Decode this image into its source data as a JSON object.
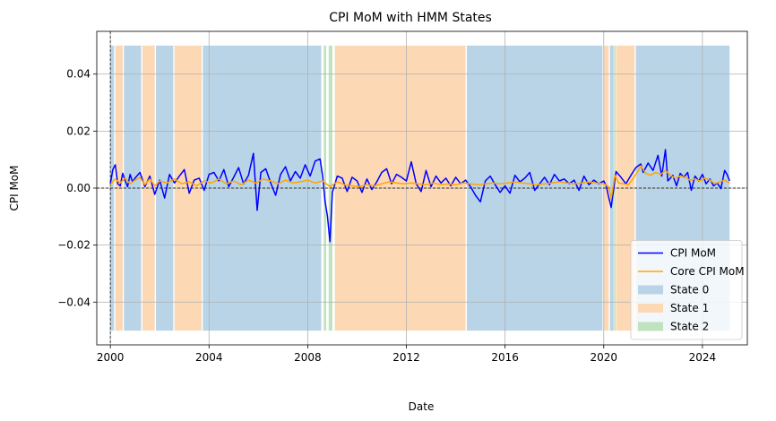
{
  "chart_data": {
    "type": "line",
    "title": "CPI MoM with HMM States",
    "xlabel": "Date",
    "ylabel": "CPI MoM",
    "xlim": [
      1999.45,
      2025.82
    ],
    "ylim": [
      -0.055,
      0.055
    ],
    "x_ticks": [
      2000,
      2004,
      2008,
      2012,
      2016,
      2020,
      2024
    ],
    "y_ticks": [
      -0.04,
      -0.02,
      0.0,
      0.02,
      0.04
    ],
    "y_tick_labels": [
      "−0.04",
      "−0.02",
      "0.00",
      "0.02",
      "0.04"
    ],
    "grid": true,
    "legend_position": "lower-right",
    "reference_lines": {
      "horizontal_y": 0,
      "vertical_x": 2000.0
    },
    "state_band_range": [
      -0.05,
      0.05
    ],
    "state_colors": [
      "#b9d4e7",
      "#fdd8b5",
      "#bfe3bf"
    ],
    "series": [
      {
        "name": "CPI MoM",
        "color": "#0000ff",
        "points": [
          [
            2000.0,
            0.0015
          ],
          [
            2000.1,
            0.0065
          ],
          [
            2000.2,
            0.0082
          ],
          [
            2000.3,
            0.0015
          ],
          [
            2000.4,
            0.0008
          ],
          [
            2000.5,
            0.0052
          ],
          [
            2000.6,
            0.0025
          ],
          [
            2000.7,
            0.0005
          ],
          [
            2000.8,
            0.0048
          ],
          [
            2000.9,
            0.0022
          ],
          [
            2001.0,
            0.0035
          ],
          [
            2001.2,
            0.0055
          ],
          [
            2001.4,
            0.0005
          ],
          [
            2001.6,
            0.0042
          ],
          [
            2001.8,
            -0.0022
          ],
          [
            2002.0,
            0.0028
          ],
          [
            2002.2,
            -0.0035
          ],
          [
            2002.4,
            0.0048
          ],
          [
            2002.6,
            0.0018
          ],
          [
            2002.8,
            0.0042
          ],
          [
            2003.0,
            0.0065
          ],
          [
            2003.2,
            -0.0018
          ],
          [
            2003.4,
            0.0028
          ],
          [
            2003.6,
            0.0035
          ],
          [
            2003.8,
            -0.0008
          ],
          [
            2004.0,
            0.0048
          ],
          [
            2004.2,
            0.0055
          ],
          [
            2004.4,
            0.0025
          ],
          [
            2004.6,
            0.0065
          ],
          [
            2004.8,
            0.0005
          ],
          [
            2005.0,
            0.0038
          ],
          [
            2005.2,
            0.0072
          ],
          [
            2005.4,
            0.0015
          ],
          [
            2005.6,
            0.0045
          ],
          [
            2005.8,
            0.0122
          ],
          [
            2005.95,
            -0.0078
          ],
          [
            2006.1,
            0.0055
          ],
          [
            2006.3,
            0.0068
          ],
          [
            2006.5,
            0.0018
          ],
          [
            2006.7,
            -0.0025
          ],
          [
            2006.9,
            0.0048
          ],
          [
            2007.1,
            0.0075
          ],
          [
            2007.3,
            0.0025
          ],
          [
            2007.5,
            0.0058
          ],
          [
            2007.7,
            0.0035
          ],
          [
            2007.9,
            0.0082
          ],
          [
            2008.1,
            0.0042
          ],
          [
            2008.3,
            0.0095
          ],
          [
            2008.5,
            0.0102
          ],
          [
            2008.6,
            0.0045
          ],
          [
            2008.7,
            -0.0045
          ],
          [
            2008.8,
            -0.0098
          ],
          [
            2008.9,
            -0.0188
          ],
          [
            2009.0,
            -0.0015
          ],
          [
            2009.2,
            0.0042
          ],
          [
            2009.4,
            0.0035
          ],
          [
            2009.6,
            -0.0012
          ],
          [
            2009.8,
            0.0038
          ],
          [
            2010.0,
            0.0025
          ],
          [
            2010.2,
            -0.0015
          ],
          [
            2010.4,
            0.0032
          ],
          [
            2010.6,
            -0.0005
          ],
          [
            2010.8,
            0.0022
          ],
          [
            2011.0,
            0.0055
          ],
          [
            2011.2,
            0.0068
          ],
          [
            2011.4,
            0.0015
          ],
          [
            2011.6,
            0.0048
          ],
          [
            2011.8,
            0.0038
          ],
          [
            2012.0,
            0.0025
          ],
          [
            2012.2,
            0.0092
          ],
          [
            2012.4,
            0.0015
          ],
          [
            2012.6,
            -0.0012
          ],
          [
            2012.8,
            0.0062
          ],
          [
            2013.0,
            0.0005
          ],
          [
            2013.2,
            0.0042
          ],
          [
            2013.4,
            0.0018
          ],
          [
            2013.6,
            0.0035
          ],
          [
            2013.8,
            0.0008
          ],
          [
            2014.0,
            0.0038
          ],
          [
            2014.2,
            0.0015
          ],
          [
            2014.4,
            0.0028
          ],
          [
            2014.6,
            0.0005
          ],
          [
            2014.8,
            -0.0025
          ],
          [
            2015.0,
            -0.0048
          ],
          [
            2015.2,
            0.0025
          ],
          [
            2015.4,
            0.0042
          ],
          [
            2015.6,
            0.0012
          ],
          [
            2015.8,
            -0.0015
          ],
          [
            2016.0,
            0.0008
          ],
          [
            2016.2,
            -0.0018
          ],
          [
            2016.4,
            0.0045
          ],
          [
            2016.6,
            0.0022
          ],
          [
            2016.8,
            0.0035
          ],
          [
            2017.0,
            0.0055
          ],
          [
            2017.2,
            -0.0008
          ],
          [
            2017.4,
            0.0015
          ],
          [
            2017.6,
            0.0038
          ],
          [
            2017.8,
            0.0012
          ],
          [
            2018.0,
            0.0048
          ],
          [
            2018.2,
            0.0025
          ],
          [
            2018.4,
            0.0032
          ],
          [
            2018.6,
            0.0015
          ],
          [
            2018.8,
            0.0028
          ],
          [
            2019.0,
            -0.0008
          ],
          [
            2019.2,
            0.0042
          ],
          [
            2019.4,
            0.0012
          ],
          [
            2019.6,
            0.0028
          ],
          [
            2019.8,
            0.0015
          ],
          [
            2020.0,
            0.0025
          ],
          [
            2020.1,
            0.0008
          ],
          [
            2020.2,
            -0.0032
          ],
          [
            2020.3,
            -0.0068
          ],
          [
            2020.4,
            -0.0005
          ],
          [
            2020.5,
            0.0058
          ],
          [
            2020.7,
            0.0038
          ],
          [
            2020.9,
            0.0015
          ],
          [
            2021.1,
            0.0045
          ],
          [
            2021.3,
            0.0072
          ],
          [
            2021.5,
            0.0085
          ],
          [
            2021.6,
            0.0055
          ],
          [
            2021.8,
            0.0088
          ],
          [
            2022.0,
            0.0062
          ],
          [
            2022.2,
            0.0115
          ],
          [
            2022.35,
            0.0042
          ],
          [
            2022.5,
            0.0135
          ],
          [
            2022.6,
            0.0025
          ],
          [
            2022.8,
            0.0045
          ],
          [
            2022.95,
            0.0008
          ],
          [
            2023.1,
            0.0052
          ],
          [
            2023.25,
            0.0038
          ],
          [
            2023.4,
            0.0055
          ],
          [
            2023.55,
            -0.0008
          ],
          [
            2023.7,
            0.0042
          ],
          [
            2023.85,
            0.0025
          ],
          [
            2024.0,
            0.0048
          ],
          [
            2024.15,
            0.0015
          ],
          [
            2024.3,
            0.0032
          ],
          [
            2024.45,
            0.0008
          ],
          [
            2024.6,
            0.0018
          ],
          [
            2024.75,
            -0.0002
          ],
          [
            2024.9,
            0.0062
          ],
          [
            2025.0,
            0.0048
          ],
          [
            2025.1,
            0.0025
          ]
        ]
      },
      {
        "name": "Core CPI MoM",
        "color": "#ffa500",
        "points": [
          [
            2000.0,
            0.0012
          ],
          [
            2000.2,
            0.0032
          ],
          [
            2000.4,
            0.0018
          ],
          [
            2000.6,
            0.0035
          ],
          [
            2000.8,
            0.0015
          ],
          [
            2001.0,
            0.0028
          ],
          [
            2001.2,
            0.0038
          ],
          [
            2001.4,
            0.0012
          ],
          [
            2001.6,
            0.0032
          ],
          [
            2001.8,
            0.0008
          ],
          [
            2002.0,
            0.0025
          ],
          [
            2002.3,
            0.0018
          ],
          [
            2002.6,
            0.0032
          ],
          [
            2002.9,
            0.0015
          ],
          [
            2003.2,
            0.0022
          ],
          [
            2003.5,
            0.0008
          ],
          [
            2003.8,
            0.0025
          ],
          [
            2004.1,
            0.0018
          ],
          [
            2004.4,
            0.0032
          ],
          [
            2004.7,
            0.0015
          ],
          [
            2005.0,
            0.0025
          ],
          [
            2005.3,
            0.0012
          ],
          [
            2005.6,
            0.0028
          ],
          [
            2005.9,
            0.0018
          ],
          [
            2006.2,
            0.0032
          ],
          [
            2006.5,
            0.0025
          ],
          [
            2006.8,
            0.0015
          ],
          [
            2007.1,
            0.0028
          ],
          [
            2007.4,
            0.0018
          ],
          [
            2007.7,
            0.0022
          ],
          [
            2008.0,
            0.0028
          ],
          [
            2008.3,
            0.0018
          ],
          [
            2008.6,
            0.0025
          ],
          [
            2008.9,
            0.0005
          ],
          [
            2009.2,
            0.0022
          ],
          [
            2009.5,
            0.0012
          ],
          [
            2009.8,
            0.0008
          ],
          [
            2010.1,
            0.0005
          ],
          [
            2010.4,
            0.0012
          ],
          [
            2010.7,
            0.0008
          ],
          [
            2011.0,
            0.0015
          ],
          [
            2011.3,
            0.0022
          ],
          [
            2011.6,
            0.0018
          ],
          [
            2011.9,
            0.0015
          ],
          [
            2012.2,
            0.0018
          ],
          [
            2012.5,
            0.0015
          ],
          [
            2012.8,
            0.0012
          ],
          [
            2013.1,
            0.0018
          ],
          [
            2013.4,
            0.0012
          ],
          [
            2013.7,
            0.0015
          ],
          [
            2014.0,
            0.0012
          ],
          [
            2014.3,
            0.0018
          ],
          [
            2014.6,
            0.0015
          ],
          [
            2014.9,
            0.0012
          ],
          [
            2015.2,
            0.0015
          ],
          [
            2015.5,
            0.0018
          ],
          [
            2015.8,
            0.0015
          ],
          [
            2016.1,
            0.0018
          ],
          [
            2016.4,
            0.0022
          ],
          [
            2016.7,
            0.0018
          ],
          [
            2017.0,
            0.0015
          ],
          [
            2017.3,
            0.0012
          ],
          [
            2017.6,
            0.0015
          ],
          [
            2017.9,
            0.0018
          ],
          [
            2018.2,
            0.0022
          ],
          [
            2018.5,
            0.0018
          ],
          [
            2018.8,
            0.0015
          ],
          [
            2019.1,
            0.0018
          ],
          [
            2019.4,
            0.0022
          ],
          [
            2019.7,
            0.0018
          ],
          [
            2020.0,
            0.0015
          ],
          [
            2020.2,
            0.0005
          ],
          [
            2020.3,
            -0.0038
          ],
          [
            2020.45,
            0.0045
          ],
          [
            2020.6,
            0.0018
          ],
          [
            2020.8,
            0.0015
          ],
          [
            2021.0,
            0.0012
          ],
          [
            2021.2,
            0.0035
          ],
          [
            2021.4,
            0.0062
          ],
          [
            2021.5,
            0.0078
          ],
          [
            2021.7,
            0.0052
          ],
          [
            2021.9,
            0.0045
          ],
          [
            2022.1,
            0.0055
          ],
          [
            2022.3,
            0.0048
          ],
          [
            2022.5,
            0.0062
          ],
          [
            2022.7,
            0.0045
          ],
          [
            2022.9,
            0.0035
          ],
          [
            2023.1,
            0.0042
          ],
          [
            2023.3,
            0.0038
          ],
          [
            2023.5,
            0.0028
          ],
          [
            2023.7,
            0.0032
          ],
          [
            2023.9,
            0.0025
          ],
          [
            2024.1,
            0.0035
          ],
          [
            2024.3,
            0.0028
          ],
          [
            2024.5,
            0.0015
          ],
          [
            2024.7,
            0.0022
          ],
          [
            2024.9,
            0.0028
          ],
          [
            2025.1,
            0.0018
          ]
        ]
      }
    ],
    "states": [
      {
        "name": "State 0",
        "intervals": [
          [
            2000.0,
            2000.15
          ],
          [
            2000.55,
            2001.25
          ],
          [
            2001.85,
            2002.55
          ],
          [
            2003.75,
            2008.55
          ],
          [
            2014.45,
            2019.95
          ],
          [
            2020.25,
            2020.4
          ],
          [
            2021.3,
            2025.1
          ]
        ]
      },
      {
        "name": "State 1",
        "intervals": [
          [
            2000.2,
            2000.5
          ],
          [
            2001.3,
            2001.8
          ],
          [
            2002.6,
            2003.7
          ],
          [
            2009.1,
            2014.4
          ],
          [
            2020.0,
            2020.2
          ],
          [
            2020.5,
            2021.25
          ]
        ]
      },
      {
        "name": "State 2",
        "intervals": [
          [
            2008.65,
            2008.75
          ],
          [
            2008.85,
            2009.0
          ],
          [
            2020.42,
            2020.48
          ]
        ]
      }
    ]
  }
}
